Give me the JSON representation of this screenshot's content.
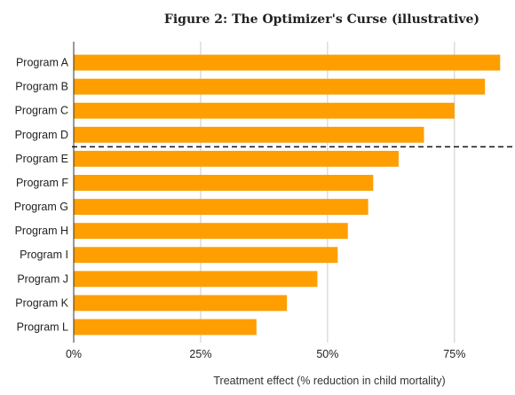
{
  "chart_data": {
    "type": "bar",
    "orientation": "horizontal",
    "title": "Figure 2: The Optimizer's Curse (illustrative)",
    "xlabel": "Treatment effect (% reduction in child mortality)",
    "ylabel": "",
    "categories": [
      "Program A",
      "Program B",
      "Program C",
      "Program D",
      "Program E",
      "Program F",
      "Program G",
      "Program H",
      "Program I",
      "Program J",
      "Program K",
      "Program L"
    ],
    "values": [
      84,
      81,
      75,
      69,
      64,
      59,
      58,
      54,
      52,
      48,
      42,
      36
    ],
    "xlim": [
      0,
      85
    ],
    "xticks": [
      {
        "value": 0,
        "label": "0%"
      },
      {
        "value": 25,
        "label": "25%"
      },
      {
        "value": 50,
        "label": "50%"
      },
      {
        "value": 75,
        "label": "75%"
      }
    ],
    "grid": "vertical",
    "legend": "none",
    "separator_after_index": 3,
    "bar_color": "#FF9E00"
  }
}
